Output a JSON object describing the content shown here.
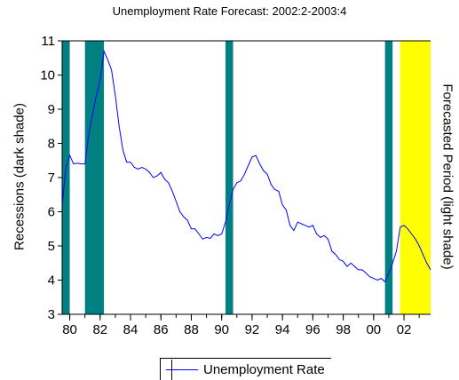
{
  "colors": {
    "recession": "#008080",
    "forecast": "#ffff00",
    "line": "#0000ff",
    "axis": "#000000"
  },
  "chart_data": {
    "type": "line",
    "title": "Unemployment Rate Forecast: 2002:2-2003:4",
    "ylabel": "Recessions (dark shade)",
    "y2label": "Forecasted Period (light shade)",
    "xlim": [
      1979.5,
      2003.75
    ],
    "ylim": [
      3,
      11
    ],
    "x_ticks": [
      80,
      82,
      84,
      86,
      88,
      90,
      92,
      94,
      96,
      98,
      0,
      2
    ],
    "x_tick_labels": [
      "80",
      "82",
      "84",
      "86",
      "88",
      "90",
      "92",
      "94",
      "96",
      "98",
      "00",
      "02"
    ],
    "y_ticks": [
      3,
      4,
      5,
      6,
      7,
      8,
      9,
      10,
      11
    ],
    "recessions": [
      [
        1979.5,
        1980.0
      ],
      [
        1981.0,
        1982.25
      ],
      [
        1990.25,
        1990.75
      ],
      [
        2000.75,
        2001.25
      ]
    ],
    "forecast_period": [
      2001.75,
      2003.75
    ],
    "grid": false,
    "legend_position": "bottom",
    "series": [
      {
        "name": "Unemployment Rate",
        "x": [
          1979.5,
          1979.75,
          1980.0,
          1980.25,
          1980.5,
          1980.75,
          1981.0,
          1981.25,
          1981.5,
          1981.75,
          1982.0,
          1982.25,
          1982.5,
          1982.75,
          1983.0,
          1983.25,
          1983.5,
          1983.75,
          1984.0,
          1984.25,
          1984.5,
          1984.75,
          1985.0,
          1985.25,
          1985.5,
          1985.75,
          1986.0,
          1986.25,
          1986.5,
          1986.75,
          1987.0,
          1987.25,
          1987.5,
          1987.75,
          1988.0,
          1988.25,
          1988.5,
          1988.75,
          1989.0,
          1989.25,
          1989.5,
          1989.75,
          1990.0,
          1990.25,
          1990.5,
          1990.75,
          1991.0,
          1991.25,
          1991.5,
          1991.75,
          1992.0,
          1992.25,
          1992.5,
          1992.75,
          1993.0,
          1993.25,
          1993.5,
          1993.75,
          1994.0,
          1994.25,
          1994.5,
          1994.75,
          1995.0,
          1995.25,
          1995.5,
          1995.75,
          1996.0,
          1996.25,
          1996.5,
          1996.75,
          1997.0,
          1997.25,
          1997.5,
          1997.75,
          1998.0,
          1998.25,
          1998.5,
          1998.75,
          1999.0,
          1999.25,
          1999.5,
          1999.75,
          2000.0,
          2000.25,
          2000.5,
          2000.75,
          2001.0,
          2001.25,
          2001.5,
          2001.75,
          2002.0,
          2002.25,
          2002.5,
          2002.75,
          2003.0,
          2003.25,
          2003.5,
          2003.75
        ],
        "values": [
          6.2,
          7.3,
          7.65,
          7.4,
          7.42,
          7.4,
          7.4,
          8.25,
          8.85,
          9.4,
          9.85,
          10.7,
          10.45,
          10.15,
          9.4,
          8.5,
          7.8,
          7.45,
          7.45,
          7.3,
          7.25,
          7.3,
          7.25,
          7.15,
          7.0,
          7.05,
          7.15,
          6.95,
          6.85,
          6.6,
          6.3,
          6.0,
          5.85,
          5.75,
          5.5,
          5.5,
          5.35,
          5.2,
          5.25,
          5.22,
          5.35,
          5.3,
          5.35,
          5.7,
          6.2,
          6.65,
          6.85,
          6.9,
          7.1,
          7.35,
          7.6,
          7.65,
          7.4,
          7.2,
          7.1,
          6.8,
          6.65,
          6.6,
          6.2,
          6.05,
          5.6,
          5.45,
          5.7,
          5.65,
          5.6,
          5.55,
          5.6,
          5.35,
          5.25,
          5.3,
          5.2,
          4.85,
          4.75,
          4.6,
          4.55,
          4.4,
          4.5,
          4.4,
          4.3,
          4.3,
          4.2,
          4.1,
          4.05,
          4.0,
          4.05,
          3.95,
          4.2,
          4.5,
          4.85,
          5.55,
          5.6,
          5.5,
          5.35,
          5.2,
          5.0,
          4.75,
          4.5,
          4.3
        ]
      }
    ]
  }
}
